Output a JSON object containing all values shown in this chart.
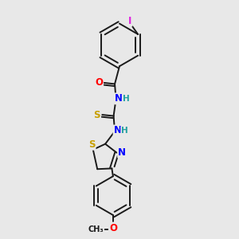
{
  "background_color": "#e8e8e8",
  "bond_color": "#1a1a1a",
  "atom_colors": {
    "I": "#e020e0",
    "O": "#ff0000",
    "N": "#0000ff",
    "S": "#c8a000",
    "C": "#1a1a1a",
    "H": "#20a0a0"
  },
  "figsize": [
    3.0,
    3.0
  ],
  "dpi": 100
}
